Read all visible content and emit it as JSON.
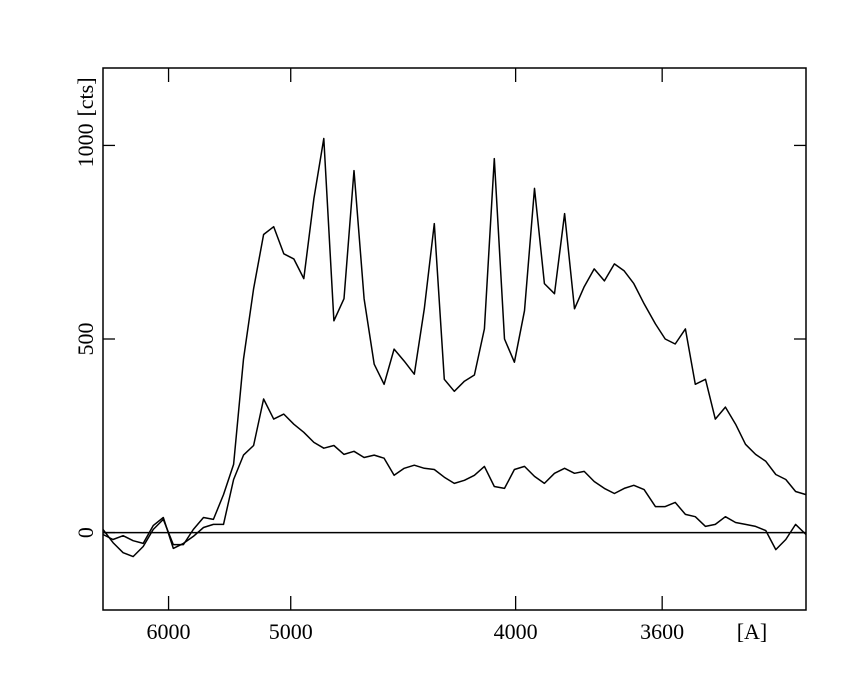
{
  "chart_data": {
    "type": "line",
    "xlabel": "[A]",
    "ylabel": "[cts]",
    "xscale": "inverse-square",
    "xlim": [
      6865,
      3305
    ],
    "xticks": [
      6000,
      5000,
      4000,
      3600
    ],
    "ylim": [
      -200,
      1200
    ],
    "yticks": [
      0,
      500,
      1000
    ],
    "reference_line": 0,
    "x": [
      6865,
      6708,
      6561,
      6424,
      6294,
      6173,
      6058,
      5949,
      5846,
      5749,
      5655,
      5567,
      5482,
      5401,
      5324,
      5250,
      5179,
      5110,
      5044,
      4981,
      4920,
      4861,
      4805,
      4750,
      4697,
      4646,
      4596,
      4548,
      4502,
      4457,
      4413,
      4370,
      4329,
      4289,
      4250,
      4212,
      4175,
      4139,
      4104,
      4070,
      4036,
      4004,
      3972,
      3941,
      3911,
      3881,
      3852,
      3824,
      3797,
      3770,
      3743,
      3717,
      3692,
      3668,
      3643,
      3616,
      3593,
      3570,
      3547,
      3525,
      3503,
      3482,
      3461,
      3440,
      3420,
      3400,
      3380,
      3361,
      3342,
      3324,
      3305
    ],
    "series": [
      {
        "color": "#000000",
        "values": [
          8,
          -26,
          -52,
          -62,
          -36,
          8,
          34,
          -31,
          -31,
          8,
          39,
          34,
          98,
          176,
          448,
          630,
          770,
          790,
          720,
          707,
          656,
          863,
          1018,
          547,
          604,
          935,
          604,
          435,
          383,
          474,
          443,
          409,
          578,
          798,
          396,
          365,
          391,
          407,
          526,
          966,
          500,
          440,
          573,
          889,
          643,
          617,
          824,
          578,
          635,
          681,
          650,
          694,
          676,
          643,
          591,
          539,
          500,
          487,
          526,
          383,
          396,
          293,
          324,
          280,
          228,
          202,
          184,
          150,
          137,
          106,
          98
        ]
      },
      {
        "color": "#000000",
        "values": [
          -5,
          -18,
          -8,
          -21,
          -28,
          18,
          39,
          -41,
          -28,
          -10,
          13,
          21,
          21,
          137,
          200,
          225,
          345,
          293,
          306,
          280,
          259,
          233,
          218,
          225,
          202,
          210,
          194,
          200,
          192,
          148,
          166,
          174,
          166,
          163,
          143,
          127,
          135,
          148,
          171,
          119,
          114,
          163,
          171,
          145,
          127,
          153,
          166,
          153,
          158,
          132,
          114,
          101,
          114,
          122,
          111,
          67,
          67,
          78,
          47,
          41,
          16,
          21,
          41,
          26,
          21,
          16,
          5,
          -44,
          -18,
          21,
          -5
        ]
      }
    ]
  }
}
